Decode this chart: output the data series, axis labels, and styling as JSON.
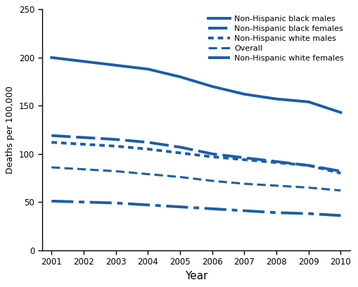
{
  "years": [
    2001,
    2002,
    2003,
    2004,
    2005,
    2006,
    2007,
    2008,
    2009,
    2010
  ],
  "nh_black_males": [
    200,
    196,
    192,
    188,
    180,
    170,
    162,
    157,
    154,
    143
  ],
  "nh_black_females": [
    119,
    117,
    115,
    112,
    107,
    100,
    96,
    92,
    88,
    82
  ],
  "nh_white_males": [
    112,
    110,
    108,
    105,
    101,
    97,
    94,
    91,
    88,
    80
  ],
  "overall": [
    86,
    84,
    82,
    79,
    76,
    72,
    69,
    67,
    65,
    62
  ],
  "nh_white_females": [
    51,
    50,
    49,
    47,
    45,
    43,
    41,
    39,
    38,
    36
  ],
  "color": "#1a5ea8",
  "ylabel": "Deaths per 100,000",
  "xlabel": "Year",
  "ylim": [
    0,
    250
  ],
  "yticks": [
    0,
    50,
    100,
    150,
    200,
    250
  ],
  "legend_labels": [
    "Non-Hispanic black males",
    "Non-Hispanic black females",
    "Non-Hispanic white males",
    "Overall",
    "Non-Hispanic white females"
  ],
  "figsize": [
    5.09,
    4.08
  ],
  "dpi": 100
}
